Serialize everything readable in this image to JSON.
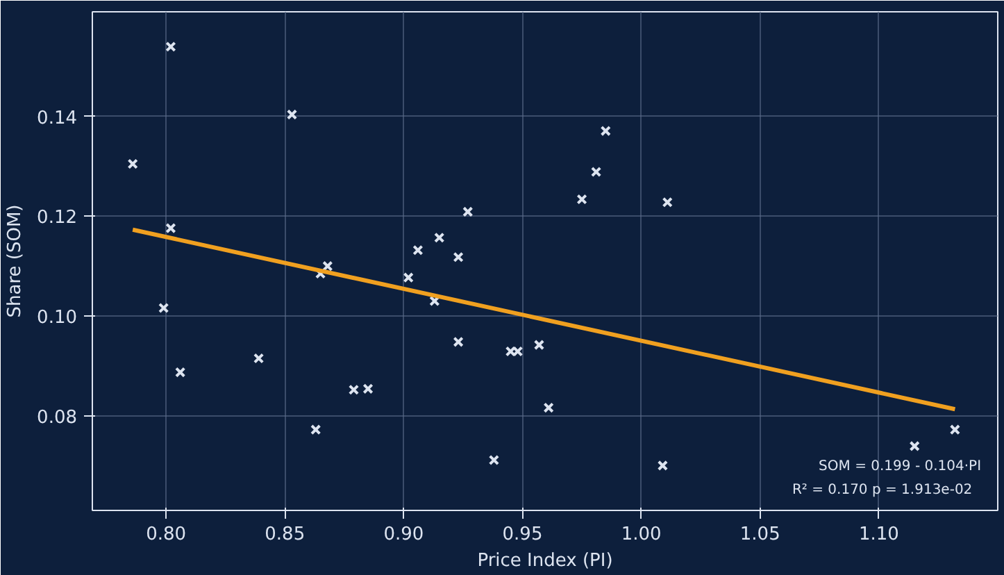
{
  "chart_data": {
    "type": "scatter",
    "xlabel": "Price Index (PI)",
    "ylabel": "Share (SOM)",
    "xlim": [
      0.769,
      1.15
    ],
    "ylim": [
      0.061,
      0.161
    ],
    "xticks": [
      {
        "value": 0.8,
        "label": "0.80"
      },
      {
        "value": 0.85,
        "label": "0.85"
      },
      {
        "value": 0.9,
        "label": "0.90"
      },
      {
        "value": 0.95,
        "label": "0.95"
      },
      {
        "value": 1.0,
        "label": "1.00"
      },
      {
        "value": 1.05,
        "label": "1.05"
      },
      {
        "value": 1.1,
        "label": "1.10"
      }
    ],
    "yticks": [
      {
        "value": 0.08,
        "label": "0.08"
      },
      {
        "value": 0.1,
        "label": "0.10"
      },
      {
        "value": 0.12,
        "label": "0.12"
      },
      0.14
    ],
    "grid": true,
    "series": [
      {
        "marker": "cross",
        "color": "#dde4f0",
        "x": [
          0.802,
          0.786,
          0.802,
          0.799,
          0.806,
          0.839,
          0.853,
          0.863,
          0.865,
          0.868,
          0.879,
          0.885,
          0.902,
          0.906,
          0.913,
          0.915,
          0.923,
          0.923,
          0.927,
          0.938,
          0.945,
          0.948,
          0.957,
          0.961,
          0.975,
          0.981,
          0.985,
          1.011,
          1.009,
          1.115,
          1.132
        ],
        "values": [
          0.154,
          0.1305,
          0.1176,
          0.1016,
          0.0887,
          0.0915,
          0.1404,
          0.0772,
          0.1085,
          0.11,
          0.0852,
          0.0854,
          0.1077,
          0.1132,
          0.103,
          0.1157,
          0.1118,
          0.0948,
          0.1209,
          0.0711,
          0.0929,
          0.0929,
          0.0942,
          0.0816,
          0.1234,
          0.1289,
          0.1371,
          0.1228,
          0.07,
          0.0739,
          0.0772
        ]
      },
      {
        "type": "line",
        "color": "#f0a020",
        "x": [
          0.786,
          1.132
        ],
        "values": [
          0.1173,
          0.0813
        ]
      }
    ],
    "annotations": [
      "SOM = 0.199 - 0.104·PI",
      "R² = 0.170   p = 1.913e-02"
    ]
  }
}
